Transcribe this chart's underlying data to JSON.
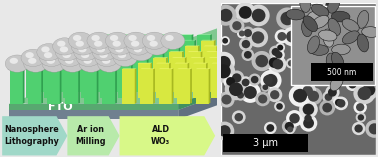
{
  "fig_width": 3.78,
  "fig_height": 1.57,
  "dpi": 100,
  "bg_color": "#e8e8e8",
  "sphere_color": "#c8c8c8",
  "sphere_highlight": "#efefef",
  "sphere_shadow": "#909090",
  "pillar_green_front": "#50d070",
  "pillar_green_side": "#30a050",
  "pillar_green_top": "#90f0a0",
  "pillar_yellow_front": "#d8e840",
  "pillar_yellow_side": "#a8b820",
  "pillar_yellow_top": "#f0f870",
  "fto_top_color": "#80c890",
  "fto_front_color": "#58a870",
  "fto_side_color": "#409060",
  "base_top_color": "#a0b0b8",
  "base_front_color": "#708090",
  "base_side_color": "#607080",
  "fto_label": "FTO",
  "label_step1": "Nanosphere\nLithography",
  "label_step2": "Ar ion\nMilling",
  "label_step3": "ALD\nWO₃",
  "arrow1_color": "#a0d8c8",
  "arrow2_color": "#b8eaaa",
  "arrow3_color": "#d8f888",
  "text_color": "#111111",
  "scale_bar_large": "3 μm",
  "scale_bar_small": "500 nm"
}
